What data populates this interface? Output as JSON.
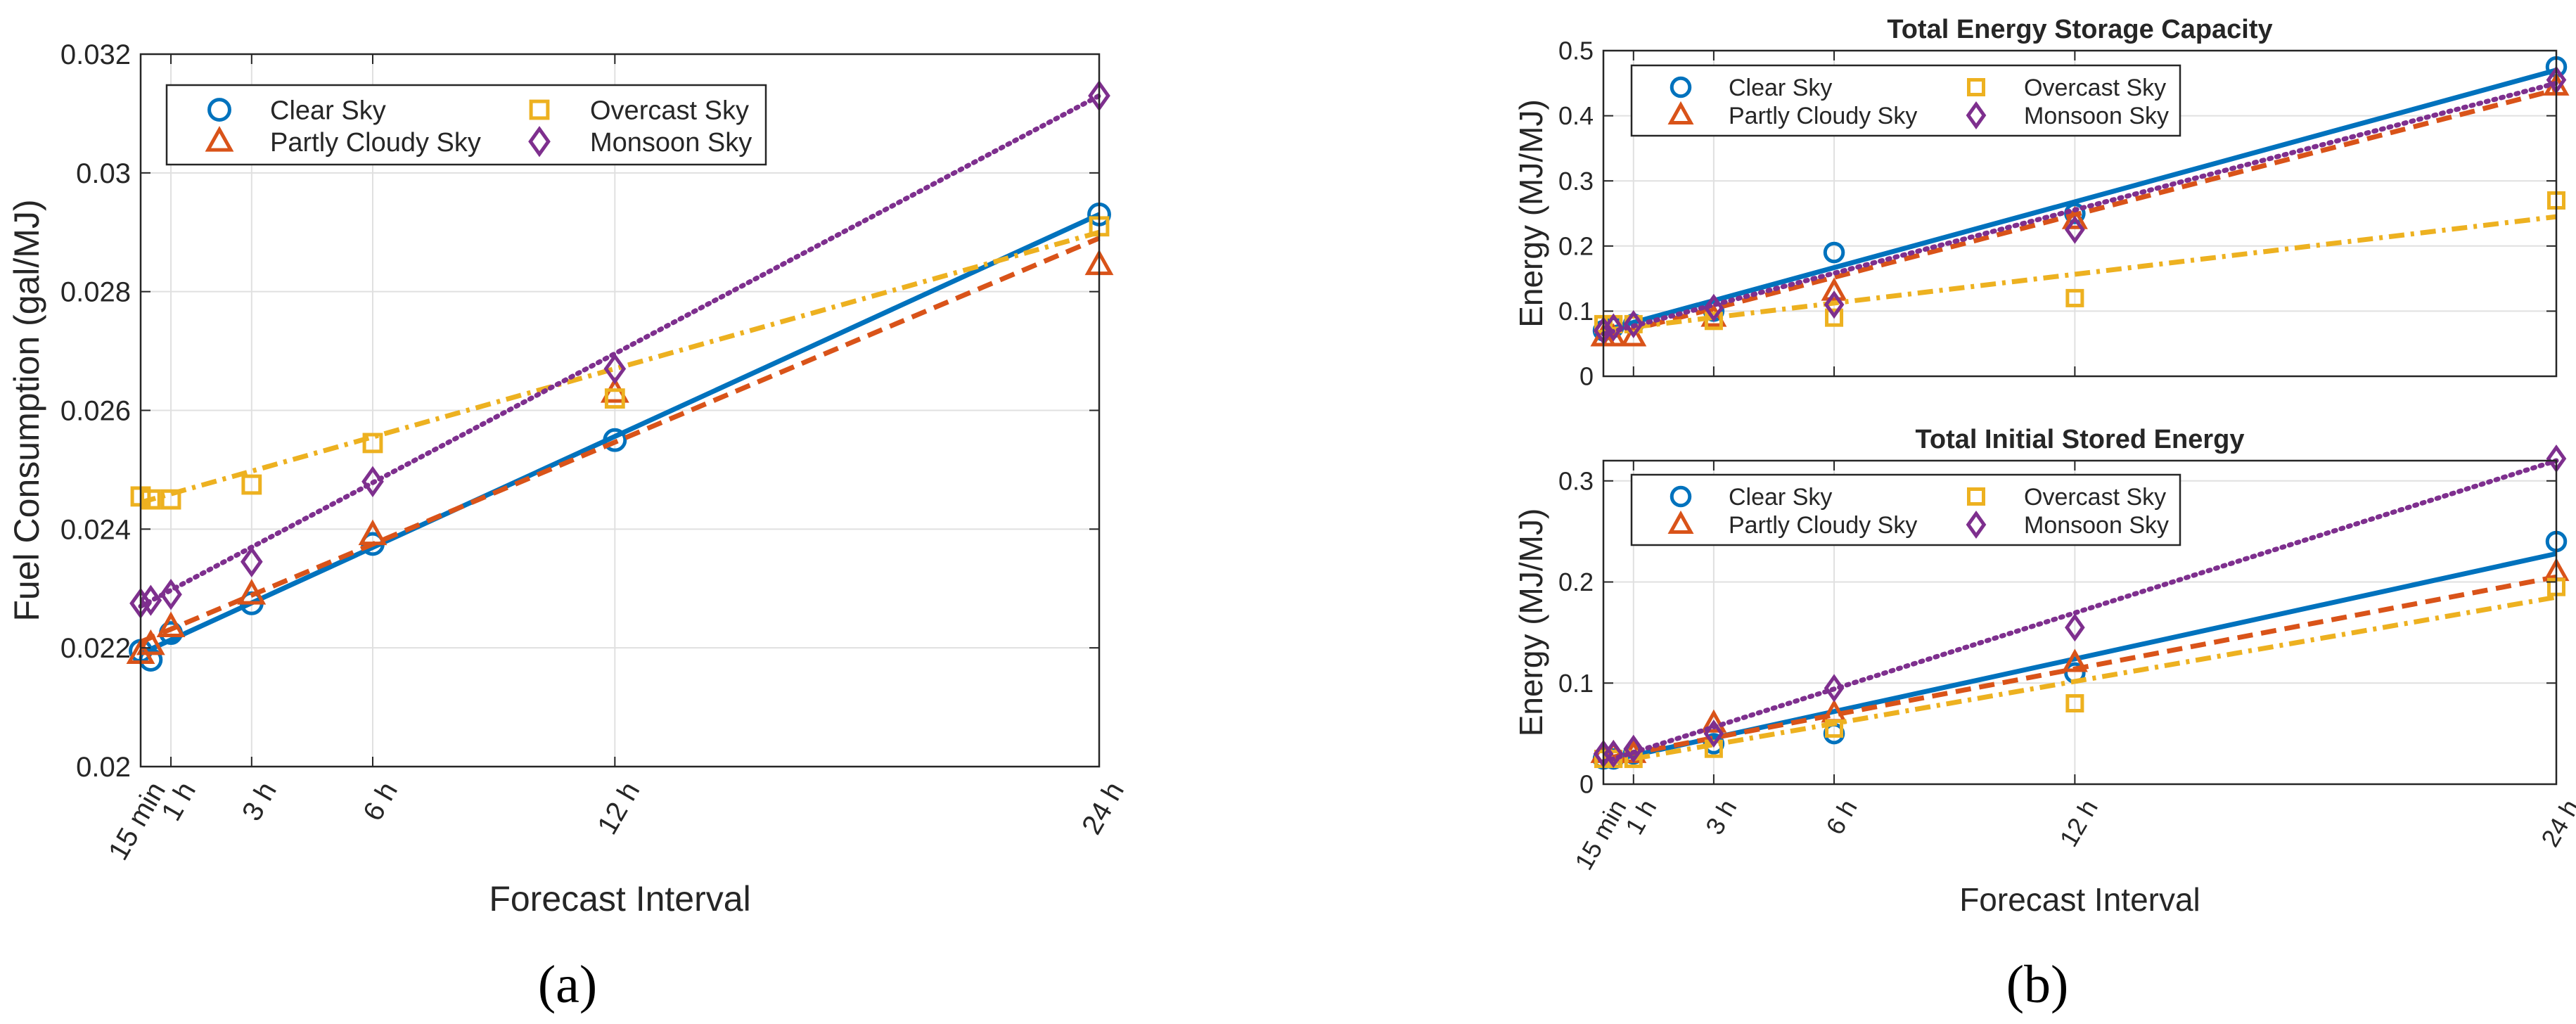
{
  "figure": {
    "panel_labels": [
      "(a)",
      "(b)"
    ]
  },
  "legend_entries": [
    "Clear Sky",
    "Partly Cloudy Sky",
    "Overcast Sky",
    "Monsoon Sky"
  ],
  "series_colors": {
    "Clear Sky": "#0072BD",
    "Partly Cloudy Sky": "#D95319",
    "Overcast Sky": "#EDB120",
    "Monsoon Sky": "#7E2F8E"
  },
  "chart_data": [
    {
      "id": "a",
      "type": "scatter",
      "title": "",
      "xlabel": "Forecast Interval",
      "ylabel": "Fuel Consumption (gal/MJ)",
      "xlim": [
        0.25,
        24
      ],
      "ylim": [
        0.02,
        0.032
      ],
      "grid": true,
      "legend_position": "top-left",
      "x_ticks": [
        0.25,
        1,
        3,
        6,
        12,
        24
      ],
      "x_tick_labels": [
        "15 min",
        "1 h",
        "3 h",
        "6 h",
        "12 h",
        "24 h"
      ],
      "y_ticks": [
        0.02,
        0.022,
        0.024,
        0.026,
        0.028,
        0.03,
        0.032
      ],
      "y_tick_labels": [
        "0.02",
        "0.022",
        "0.024",
        "0.026",
        "0.028",
        "0.03",
        "0.032"
      ],
      "x": [
        0.25,
        0.5,
        1,
        3,
        6,
        12,
        24
      ],
      "series": [
        {
          "name": "Clear Sky",
          "marker": "circle",
          "values": [
            0.02195,
            0.0218,
            0.02225,
            0.02275,
            0.02375,
            0.0255,
            0.0293
          ],
          "fit_line": [
            0.0219,
            0.0293
          ]
        },
        {
          "name": "Partly Cloudy Sky",
          "marker": "triangle",
          "values": [
            0.0219,
            0.02205,
            0.02235,
            0.0229,
            0.0239,
            0.0263,
            0.02845
          ],
          "fit_line": [
            0.0221,
            0.0289
          ]
        },
        {
          "name": "Overcast Sky",
          "marker": "square",
          "values": [
            0.02455,
            0.0245,
            0.0245,
            0.02475,
            0.02545,
            0.0262,
            0.0291
          ],
          "fit_line": [
            0.02445,
            0.029
          ]
        },
        {
          "name": "Monsoon Sky",
          "marker": "diamond",
          "values": [
            0.02275,
            0.0228,
            0.0229,
            0.02345,
            0.0248,
            0.0267,
            0.0313
          ],
          "fit_line": [
            0.0227,
            0.0313
          ]
        }
      ]
    },
    {
      "id": "b-top",
      "type": "scatter",
      "title": "Total Energy Storage Capacity",
      "xlabel": "",
      "ylabel": "Energy (MJ/MJ)",
      "xlim": [
        0.25,
        24
      ],
      "ylim": [
        0,
        0.5
      ],
      "grid": true,
      "legend_position": "top-left",
      "x_ticks": [
        0.25,
        1,
        3,
        6,
        12,
        24
      ],
      "x_tick_labels": [],
      "y_ticks": [
        0,
        0.1,
        0.2,
        0.3,
        0.4,
        0.5
      ],
      "y_tick_labels": [
        "0",
        "0.1",
        "0.2",
        "0.3",
        "0.4",
        "0.5"
      ],
      "x": [
        0.25,
        0.5,
        1,
        3,
        6,
        12,
        24
      ],
      "series": [
        {
          "name": "Clear Sky",
          "marker": "circle",
          "values": [
            0.07,
            0.075,
            0.08,
            0.1,
            0.19,
            0.25,
            0.475
          ],
          "fit_line": [
            0.07,
            0.47
          ]
        },
        {
          "name": "Partly Cloudy Sky",
          "marker": "triangle",
          "values": [
            0.06,
            0.06,
            0.06,
            0.09,
            0.13,
            0.24,
            0.445
          ],
          "fit_line": [
            0.06,
            0.44
          ]
        },
        {
          "name": "Overcast Sky",
          "marker": "square",
          "values": [
            0.08,
            0.08,
            0.08,
            0.085,
            0.09,
            0.12,
            0.27
          ],
          "fit_line": [
            0.07,
            0.245
          ]
        },
        {
          "name": "Monsoon Sky",
          "marker": "diamond",
          "values": [
            0.07,
            0.075,
            0.08,
            0.105,
            0.11,
            0.225,
            0.455
          ],
          "fit_line": [
            0.065,
            0.45
          ]
        }
      ]
    },
    {
      "id": "b-bottom",
      "type": "scatter",
      "title": "Total Initial Stored Energy",
      "xlabel": "Forecast Interval",
      "ylabel": "Energy (MJ/MJ)",
      "xlim": [
        0.25,
        24
      ],
      "ylim": [
        0,
        0.32
      ],
      "grid": true,
      "legend_position": "top-left",
      "x_ticks": [
        0.25,
        1,
        3,
        6,
        12,
        24
      ],
      "x_tick_labels": [
        "15 min",
        "1 h",
        "3 h",
        "6 h",
        "12 h",
        "24 h"
      ],
      "y_ticks": [
        0,
        0.1,
        0.2,
        0.3
      ],
      "y_tick_labels": [
        "0",
        "0.1",
        "0.2",
        "0.3"
      ],
      "x": [
        0.25,
        0.5,
        1,
        3,
        6,
        12,
        24
      ],
      "series": [
        {
          "name": "Clear Sky",
          "marker": "circle",
          "values": [
            0.025,
            0.025,
            0.03,
            0.04,
            0.05,
            0.11,
            0.24
          ],
          "fit_line": [
            0.022,
            0.228
          ]
        },
        {
          "name": "Partly Cloudy Sky",
          "marker": "triangle",
          "values": [
            0.03,
            0.03,
            0.03,
            0.06,
            0.07,
            0.12,
            0.21
          ],
          "fit_line": [
            0.025,
            0.205
          ]
        },
        {
          "name": "Overcast Sky",
          "marker": "square",
          "values": [
            0.025,
            0.025,
            0.025,
            0.035,
            0.055,
            0.08,
            0.195
          ],
          "fit_line": [
            0.02,
            0.185
          ]
        },
        {
          "name": "Monsoon Sky",
          "marker": "diamond",
          "values": [
            0.03,
            0.03,
            0.035,
            0.05,
            0.095,
            0.155,
            0.322
          ],
          "fit_line": [
            0.022,
            0.32
          ]
        }
      ]
    }
  ]
}
